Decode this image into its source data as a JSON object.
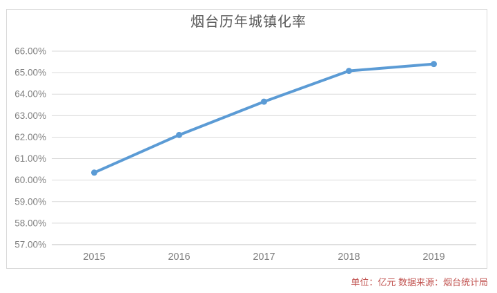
{
  "chart_data": {
    "type": "line",
    "title": "烟台历年城镇化率",
    "categories": [
      "2015",
      "2016",
      "2017",
      "2018",
      "2019"
    ],
    "values": [
      60.35,
      62.1,
      63.65,
      65.08,
      65.4
    ],
    "xlabel": "",
    "ylabel": "",
    "ylim": [
      57,
      66
    ],
    "ytick_step": 1,
    "ytick_labels": [
      "57.00%",
      "58.00%",
      "59.00%",
      "60.00%",
      "61.00%",
      "62.00%",
      "63.00%",
      "64.00%",
      "65.00%",
      "66.00%"
    ],
    "grid": true,
    "legend_position": "none",
    "footnote": "单位：亿元  数据来源：烟台统计局",
    "colors": {
      "line": "#5b9bd5",
      "marker": "#5b9bd5",
      "grid": "#d9d9d9",
      "axis": "#bfbfbf",
      "title": "#595959",
      "tick_label": "#7f7f7f",
      "footnote": "#c0504d",
      "frame_border": "#d9d9d9",
      "background": "#ffffff"
    }
  }
}
